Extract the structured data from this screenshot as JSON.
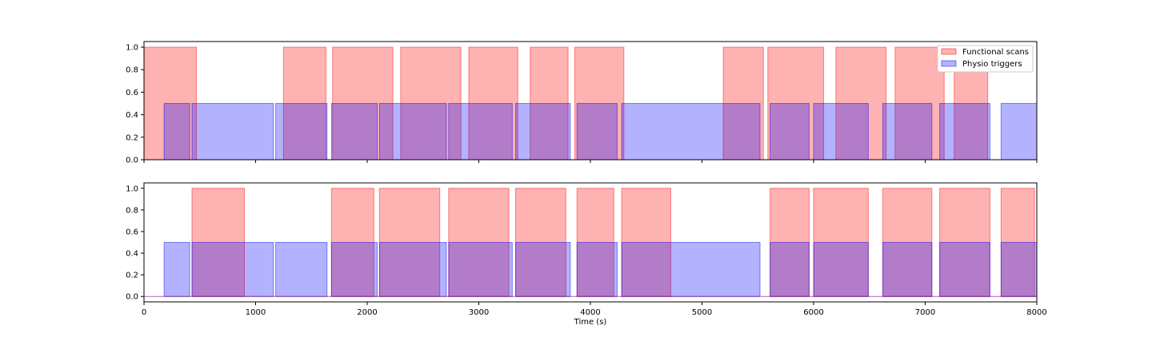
{
  "chart_data": [
    {
      "type": "area",
      "panel": "top",
      "xlim": [
        0,
        8000
      ],
      "ylim": [
        0,
        1.05
      ],
      "yticks": [
        "0.0",
        "0.2",
        "0.4",
        "0.6",
        "0.8",
        "1.0"
      ],
      "xlabel": "",
      "legend": {
        "placement": "top-right",
        "entries": [
          "Functional scans",
          "Physio triggers"
        ]
      },
      "series": [
        {
          "name": "Functional scans",
          "color": "#ff0000",
          "value": 1.0,
          "intervals": [
            [
              0,
              470
            ],
            [
              1250,
              1630
            ],
            [
              1690,
              2230
            ],
            [
              2300,
              2840
            ],
            [
              2910,
              3350
            ],
            [
              3460,
              3800
            ],
            [
              3860,
              4300
            ],
            [
              5190,
              5550
            ],
            [
              5590,
              6090
            ],
            [
              6200,
              6650
            ],
            [
              6730,
              7170
            ],
            [
              7260,
              7560
            ]
          ]
        },
        {
          "name": "Physio triggers",
          "color": "#0000ff",
          "value": 0.5,
          "intervals": [
            [
              180,
              410
            ],
            [
              430,
              1160
            ],
            [
              1180,
              1640
            ],
            [
              1680,
              2090
            ],
            [
              2110,
              2710
            ],
            [
              2730,
              3300
            ],
            [
              3330,
              3820
            ],
            [
              3880,
              4240
            ],
            [
              4280,
              5520
            ],
            [
              5610,
              5960
            ],
            [
              6000,
              6490
            ],
            [
              6620,
              7060
            ],
            [
              7130,
              7580
            ],
            [
              7680,
              8000
            ]
          ]
        }
      ]
    },
    {
      "type": "area",
      "panel": "bottom",
      "xlim": [
        0,
        8000
      ],
      "ylim": [
        -0.05,
        1.05
      ],
      "yticks": [
        "0.0",
        "0.2",
        "0.4",
        "0.6",
        "0.8",
        "1.0"
      ],
      "xticks": [
        "0",
        "1000",
        "2000",
        "3000",
        "4000",
        "5000",
        "6000",
        "7000",
        "8000"
      ],
      "xlabel": "Time (s)",
      "series": [
        {
          "name": "Functional scans",
          "color": "#ff0000",
          "value": 1.0,
          "intervals": [
            [
              430,
              900
            ],
            [
              1680,
              2060
            ],
            [
              2110,
              2650
            ],
            [
              2730,
              3270
            ],
            [
              3330,
              3780
            ],
            [
              3880,
              4210
            ],
            [
              4280,
              4720
            ],
            [
              5610,
              5960
            ],
            [
              6000,
              6490
            ],
            [
              6620,
              7060
            ],
            [
              7130,
              7580
            ],
            [
              7680,
              7980
            ]
          ]
        },
        {
          "name": "Physio triggers",
          "color": "#0000ff",
          "value": 0.5,
          "intervals": [
            [
              180,
              410
            ],
            [
              430,
              1160
            ],
            [
              1180,
              1640
            ],
            [
              1680,
              2090
            ],
            [
              2110,
              2710
            ],
            [
              2730,
              3300
            ],
            [
              3330,
              3820
            ],
            [
              3880,
              4240
            ],
            [
              4280,
              5520
            ],
            [
              5610,
              5960
            ],
            [
              6000,
              6490
            ],
            [
              6620,
              7060
            ],
            [
              7130,
              7580
            ],
            [
              7680,
              8000
            ]
          ]
        }
      ]
    }
  ]
}
